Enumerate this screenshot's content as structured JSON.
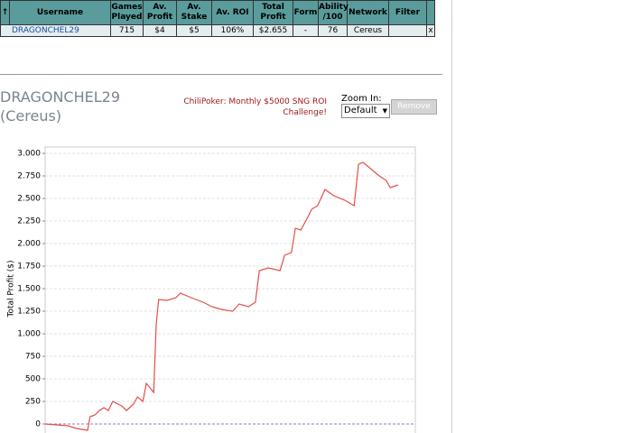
{
  "table": {
    "headers": [
      "Username",
      "Games Played",
      "Av. Profit",
      "Av. Stake",
      "Av. ROI",
      "Total Profit",
      "Form",
      "Ability /100",
      "Network",
      "Filter"
    ],
    "rows": [
      [
        "DRAGONCHEL29",
        "715",
        "$4",
        "$5",
        "106%",
        "$2.655",
        "-",
        "76",
        "Cereus"
      ]
    ],
    "close": "x"
  },
  "profile": {
    "name": "DRAGONCHEL29",
    "network": "(Cereus)",
    "promo": "ChiliPoker: Monthly $5000 SNG ROI Challenge!",
    "zoom_label": "Zoom In:",
    "zoom_value": "Default",
    "button": "Remove"
  },
  "chart_data": {
    "type": "line",
    "y_label": "Total Profit ($)",
    "xlim": [
      0,
      750
    ],
    "ylim": [
      -100,
      3050
    ],
    "yticks": [
      0,
      250,
      500,
      750,
      {
        "value": 1000,
        "label": "1.000"
      },
      {
        "value": 1250,
        "label": "1.250"
      },
      {
        "value": 1500,
        "label": "1.500"
      },
      {
        "value": 1750,
        "label": "1.750"
      },
      {
        "value": 2000,
        "label": "2.000"
      },
      {
        "value": 2250,
        "label": "2.250"
      },
      {
        "value": 2500,
        "label": "2.500"
      },
      {
        "value": 2750,
        "label": "2.750"
      },
      {
        "value": 3000,
        "label": "3.000"
      }
    ],
    "grid": true,
    "series": [
      {
        "name": "Total Profit",
        "color": "#e0504a",
        "x": [
          0,
          46,
          64,
          86,
          91,
          101,
          110,
          119,
          128,
          137,
          155,
          165,
          179,
          187,
          198,
          205,
          220,
          225,
          230,
          247,
          265,
          274,
          296,
          320,
          338,
          357,
          380,
          393,
          412,
          426,
          434,
          452,
          476,
          485,
          499,
          507,
          518,
          530,
          540,
          552,
          567,
          585,
          607,
          626,
          635,
          644,
          655,
          677,
          691,
          699,
          715
        ],
        "values": [
          0,
          -20,
          -50,
          -70,
          80,
          100,
          150,
          180,
          150,
          250,
          200,
          150,
          220,
          300,
          250,
          450,
          350,
          1100,
          1380,
          1370,
          1400,
          1450,
          1400,
          1350,
          1300,
          1270,
          1250,
          1330,
          1300,
          1350,
          1700,
          1730,
          1700,
          1870,
          1900,
          2170,
          2150,
          2270,
          2380,
          2420,
          2600,
          2530,
          2480,
          2420,
          2880,
          2900,
          2850,
          2750,
          2700,
          2620,
          2650
        ]
      }
    ]
  }
}
